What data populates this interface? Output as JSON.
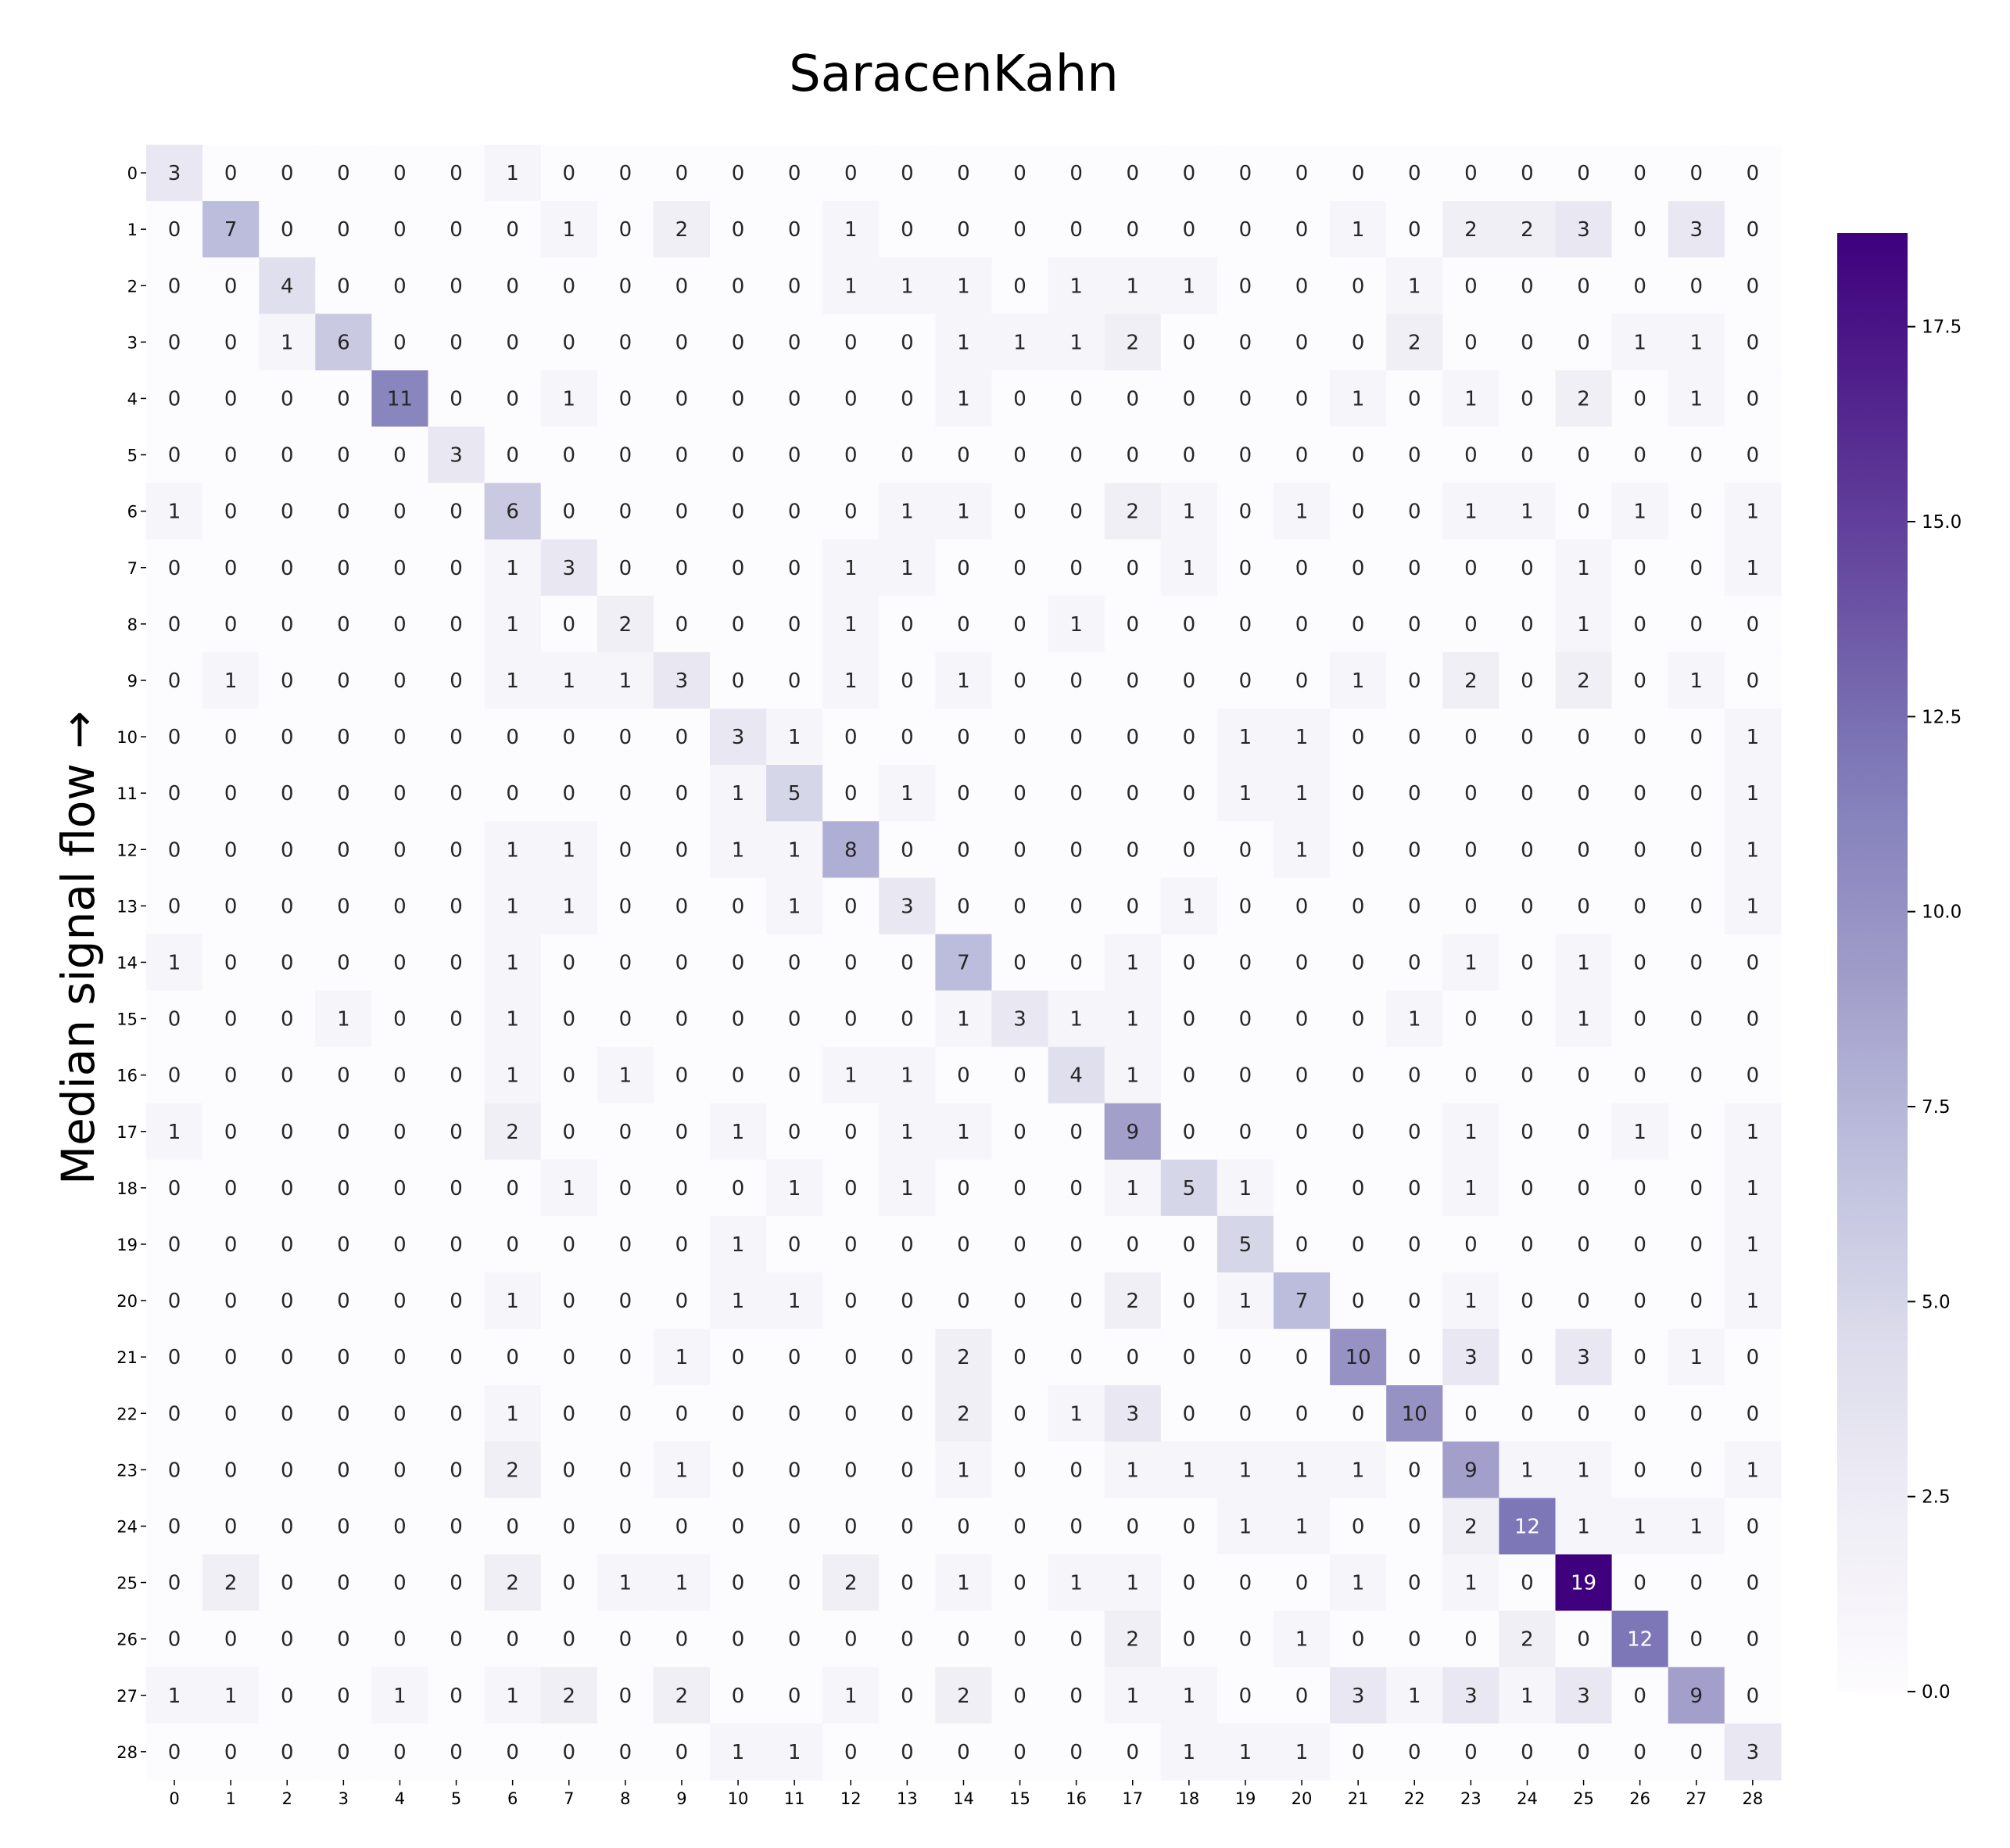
{
  "chart_data": {
    "type": "heatmap",
    "title": "SaracenKahn",
    "ylabel": "Median signal flow →",
    "xlabel": "",
    "x_ticks": [
      "0",
      "1",
      "2",
      "3",
      "4",
      "5",
      "6",
      "7",
      "8",
      "9",
      "10",
      "11",
      "12",
      "13",
      "14",
      "15",
      "16",
      "17",
      "18",
      "19",
      "20",
      "21",
      "22",
      "23",
      "24",
      "25",
      "26",
      "27",
      "28"
    ],
    "y_ticks": [
      "0",
      "1",
      "2",
      "3",
      "4",
      "5",
      "6",
      "7",
      "8",
      "9",
      "10",
      "11",
      "12",
      "13",
      "14",
      "15",
      "16",
      "17",
      "18",
      "19",
      "20",
      "21",
      "22",
      "23",
      "24",
      "25",
      "26",
      "27",
      "28"
    ],
    "values": [
      [
        3,
        0,
        0,
        0,
        0,
        0,
        1,
        0,
        0,
        0,
        0,
        0,
        0,
        0,
        0,
        0,
        0,
        0,
        0,
        0,
        0,
        0,
        0,
        0,
        0,
        0,
        0,
        0,
        0
      ],
      [
        0,
        7,
        0,
        0,
        0,
        0,
        0,
        1,
        0,
        2,
        0,
        0,
        1,
        0,
        0,
        0,
        0,
        0,
        0,
        0,
        0,
        1,
        0,
        2,
        2,
        3,
        0,
        3,
        0
      ],
      [
        0,
        0,
        4,
        0,
        0,
        0,
        0,
        0,
        0,
        0,
        0,
        0,
        1,
        1,
        1,
        0,
        1,
        1,
        1,
        0,
        0,
        0,
        1,
        0,
        0,
        0,
        0,
        0,
        0
      ],
      [
        0,
        0,
        1,
        6,
        0,
        0,
        0,
        0,
        0,
        0,
        0,
        0,
        0,
        0,
        1,
        1,
        1,
        2,
        0,
        0,
        0,
        0,
        2,
        0,
        0,
        0,
        1,
        1,
        0
      ],
      [
        0,
        0,
        0,
        0,
        11,
        0,
        0,
        1,
        0,
        0,
        0,
        0,
        0,
        0,
        1,
        0,
        0,
        0,
        0,
        0,
        0,
        1,
        0,
        1,
        0,
        2,
        0,
        1,
        0
      ],
      [
        0,
        0,
        0,
        0,
        0,
        3,
        0,
        0,
        0,
        0,
        0,
        0,
        0,
        0,
        0,
        0,
        0,
        0,
        0,
        0,
        0,
        0,
        0,
        0,
        0,
        0,
        0,
        0,
        0
      ],
      [
        1,
        0,
        0,
        0,
        0,
        0,
        6,
        0,
        0,
        0,
        0,
        0,
        0,
        1,
        1,
        0,
        0,
        2,
        1,
        0,
        1,
        0,
        0,
        1,
        1,
        0,
        1,
        0,
        1
      ],
      [
        0,
        0,
        0,
        0,
        0,
        0,
        1,
        3,
        0,
        0,
        0,
        0,
        1,
        1,
        0,
        0,
        0,
        0,
        1,
        0,
        0,
        0,
        0,
        0,
        0,
        1,
        0,
        0,
        1
      ],
      [
        0,
        0,
        0,
        0,
        0,
        0,
        1,
        0,
        2,
        0,
        0,
        0,
        1,
        0,
        0,
        0,
        1,
        0,
        0,
        0,
        0,
        0,
        0,
        0,
        0,
        1,
        0,
        0,
        0
      ],
      [
        0,
        1,
        0,
        0,
        0,
        0,
        1,
        1,
        1,
        3,
        0,
        0,
        1,
        0,
        1,
        0,
        0,
        0,
        0,
        0,
        0,
        1,
        0,
        2,
        0,
        2,
        0,
        1,
        0
      ],
      [
        0,
        0,
        0,
        0,
        0,
        0,
        0,
        0,
        0,
        0,
        3,
        1,
        0,
        0,
        0,
        0,
        0,
        0,
        0,
        1,
        1,
        0,
        0,
        0,
        0,
        0,
        0,
        0,
        1
      ],
      [
        0,
        0,
        0,
        0,
        0,
        0,
        0,
        0,
        0,
        0,
        1,
        5,
        0,
        1,
        0,
        0,
        0,
        0,
        0,
        1,
        1,
        0,
        0,
        0,
        0,
        0,
        0,
        0,
        1
      ],
      [
        0,
        0,
        0,
        0,
        0,
        0,
        1,
        1,
        0,
        0,
        1,
        1,
        8,
        0,
        0,
        0,
        0,
        0,
        0,
        0,
        1,
        0,
        0,
        0,
        0,
        0,
        0,
        0,
        1
      ],
      [
        0,
        0,
        0,
        0,
        0,
        0,
        1,
        1,
        0,
        0,
        0,
        1,
        0,
        3,
        0,
        0,
        0,
        0,
        1,
        0,
        0,
        0,
        0,
        0,
        0,
        0,
        0,
        0,
        1
      ],
      [
        1,
        0,
        0,
        0,
        0,
        0,
        1,
        0,
        0,
        0,
        0,
        0,
        0,
        0,
        7,
        0,
        0,
        1,
        0,
        0,
        0,
        0,
        0,
        1,
        0,
        1,
        0,
        0,
        0
      ],
      [
        0,
        0,
        0,
        1,
        0,
        0,
        1,
        0,
        0,
        0,
        0,
        0,
        0,
        0,
        1,
        3,
        1,
        1,
        0,
        0,
        0,
        0,
        1,
        0,
        0,
        1,
        0,
        0,
        0
      ],
      [
        0,
        0,
        0,
        0,
        0,
        0,
        1,
        0,
        1,
        0,
        0,
        0,
        1,
        1,
        0,
        0,
        4,
        1,
        0,
        0,
        0,
        0,
        0,
        0,
        0,
        0,
        0,
        0,
        0
      ],
      [
        1,
        0,
        0,
        0,
        0,
        0,
        2,
        0,
        0,
        0,
        1,
        0,
        0,
        1,
        1,
        0,
        0,
        9,
        0,
        0,
        0,
        0,
        0,
        1,
        0,
        0,
        1,
        0,
        1
      ],
      [
        0,
        0,
        0,
        0,
        0,
        0,
        0,
        1,
        0,
        0,
        0,
        1,
        0,
        1,
        0,
        0,
        0,
        1,
        5,
        1,
        0,
        0,
        0,
        1,
        0,
        0,
        0,
        0,
        1
      ],
      [
        0,
        0,
        0,
        0,
        0,
        0,
        0,
        0,
        0,
        0,
        1,
        0,
        0,
        0,
        0,
        0,
        0,
        0,
        0,
        5,
        0,
        0,
        0,
        0,
        0,
        0,
        0,
        0,
        1
      ],
      [
        0,
        0,
        0,
        0,
        0,
        0,
        1,
        0,
        0,
        0,
        1,
        1,
        0,
        0,
        0,
        0,
        0,
        2,
        0,
        1,
        7,
        0,
        0,
        1,
        0,
        0,
        0,
        0,
        1
      ],
      [
        0,
        0,
        0,
        0,
        0,
        0,
        0,
        0,
        0,
        1,
        0,
        0,
        0,
        0,
        2,
        0,
        0,
        0,
        0,
        0,
        0,
        10,
        0,
        3,
        0,
        3,
        0,
        1,
        0
      ],
      [
        0,
        0,
        0,
        0,
        0,
        0,
        1,
        0,
        0,
        0,
        0,
        0,
        0,
        0,
        2,
        0,
        1,
        3,
        0,
        0,
        0,
        0,
        10,
        0,
        0,
        0,
        0,
        0,
        0
      ],
      [
        0,
        0,
        0,
        0,
        0,
        0,
        2,
        0,
        0,
        1,
        0,
        0,
        0,
        0,
        1,
        0,
        0,
        1,
        1,
        1,
        1,
        1,
        0,
        9,
        1,
        1,
        0,
        0,
        1
      ],
      [
        0,
        0,
        0,
        0,
        0,
        0,
        0,
        0,
        0,
        0,
        0,
        0,
        0,
        0,
        0,
        0,
        0,
        0,
        0,
        1,
        1,
        0,
        0,
        2,
        12,
        1,
        1,
        1,
        0
      ],
      [
        0,
        2,
        0,
        0,
        0,
        0,
        2,
        0,
        1,
        1,
        0,
        0,
        2,
        0,
        1,
        0,
        1,
        1,
        0,
        0,
        0,
        1,
        0,
        1,
        0,
        19,
        0,
        0,
        0
      ],
      [
        0,
        0,
        0,
        0,
        0,
        0,
        0,
        0,
        0,
        0,
        0,
        0,
        0,
        0,
        0,
        0,
        0,
        2,
        0,
        0,
        1,
        0,
        0,
        0,
        2,
        0,
        12,
        0,
        0
      ],
      [
        1,
        1,
        0,
        0,
        1,
        0,
        1,
        2,
        0,
        2,
        0,
        0,
        1,
        0,
        2,
        0,
        0,
        1,
        1,
        0,
        0,
        3,
        1,
        3,
        1,
        3,
        0,
        9,
        0
      ],
      [
        0,
        0,
        0,
        0,
        0,
        0,
        0,
        0,
        0,
        0,
        1,
        1,
        0,
        0,
        0,
        0,
        0,
        0,
        1,
        1,
        1,
        0,
        0,
        0,
        0,
        0,
        0,
        0,
        3
      ]
    ],
    "colormap": "Purples",
    "vmin": 0,
    "vmax": 18.7,
    "colorbar_ticks": [
      "0.0",
      "2.5",
      "5.0",
      "7.5",
      "10.0",
      "12.5",
      "15.0",
      "17.5"
    ],
    "colorbar_tick_values": [
      0,
      2.5,
      5,
      7.5,
      10,
      12.5,
      15,
      17.5
    ]
  }
}
